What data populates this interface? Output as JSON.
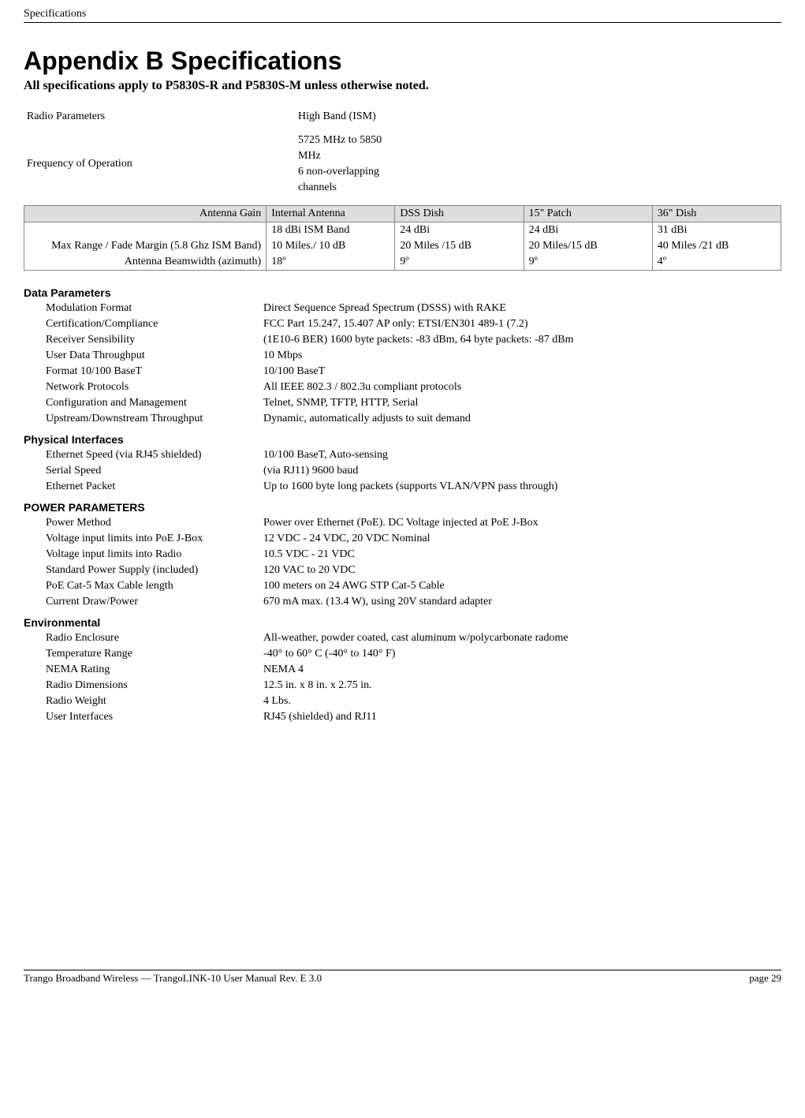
{
  "runningHeader": "Specifications",
  "appendixTitle": "Appendix B  Specifications",
  "subhead": "All specifications apply to P5830S-R and P5830S-M unless otherwise noted.",
  "radioParams": {
    "labelCol": "Radio Parameters",
    "valueCol": "High Band (ISM)",
    "freqLabel": "Frequency of Operation",
    "freqLine1": "5725 MHz to 5850",
    "freqLine2": "MHz",
    "freqLine3": "6 non-overlapping",
    "freqLine4": "channels"
  },
  "antennaTable": {
    "header": {
      "c0": "Antenna Gain",
      "c1": "Internal Antenna",
      "c2": "DSS Dish",
      "c3": "15\" Patch",
      "c4": "36\" Dish"
    },
    "rows": [
      {
        "label": "",
        "c1": "18 dBi ISM Band",
        "c2": "24 dBi",
        "c3": "24 dBi",
        "c4": "31 dBi"
      },
      {
        "label": "Max Range / Fade Margin (5.8 Ghz ISM Band)",
        "c1": "10 Miles./ 10 dB",
        "c2": "20 Miles /15 dB",
        "c3": "20 Miles/15 dB",
        "c4": "40 Miles /21 dB"
      },
      {
        "label": "Antenna Beamwidth (azimuth)",
        "c1": "18º",
        "c2": "9º",
        "c3": "9º",
        "c4": "4º"
      }
    ]
  },
  "sections": [
    {
      "title": "Data Parameters",
      "rows": [
        {
          "k": "Modulation Format",
          "v": "Direct Sequence Spread Spectrum (DSSS) with RAKE"
        },
        {
          "k": "Certification/Compliance",
          "v": "FCC Part 15.247, 15.407 AP only: ETSI/EN301 489-1 (7.2)"
        },
        {
          "k": "Receiver Sensibility",
          "v": " (1E10-6 BER) 1600 byte packets: -83 dBm, 64 byte packets: -87 dBm"
        },
        {
          "k": "User Data Throughput",
          "v": "10 Mbps"
        },
        {
          "k": "Format 10/100 BaseT",
          "v": "10/100 BaseT"
        },
        {
          "k": "Network Protocols",
          "v": "All IEEE 802.3 / 802.3u compliant protocols"
        },
        {
          "k": "Configuration and Management",
          "v": "Telnet, SNMP, TFTP, HTTP, Serial"
        },
        {
          "k": "Upstream/Downstream Throughput",
          "v": "Dynamic, automatically adjusts to suit demand"
        }
      ]
    },
    {
      "title": "Physical Interfaces",
      "rows": [
        {
          "k": "Ethernet Speed (via RJ45 shielded)",
          "v": "10/100 BaseT, Auto-sensing"
        },
        {
          "k": "Serial Speed",
          "v": "(via RJ11) 9600 baud"
        },
        {
          "k": "Ethernet Packet",
          "v": "Up to 1600 byte long packets (supports VLAN/VPN pass through)"
        }
      ]
    },
    {
      "title": "POWER PARAMETERS",
      "rows": [
        {
          "k": "Power Method",
          "v": "Power over Ethernet (PoE). DC Voltage injected at PoE J-Box"
        },
        {
          "k": "Voltage input limits into PoE J-Box",
          "v": "12 VDC - 24 VDC, 20 VDC Nominal"
        },
        {
          "k": "Voltage input limits into Radio",
          "v": "10.5 VDC - 21 VDC"
        },
        {
          "k": "Standard Power Supply (included)",
          "v": "120 VAC to 20 VDC"
        },
        {
          "k": "PoE Cat-5 Max Cable length",
          "v": "100 meters on 24 AWG STP Cat-5 Cable"
        },
        {
          "k": "Current Draw/Power",
          "v": "670 mA max. (13.4 W), using 20V standard adapter"
        }
      ]
    },
    {
      "title": "Environmental",
      "rows": [
        {
          "k": "Radio Enclosure",
          "v": "All-weather, powder coated, cast aluminum w/polycarbonate radome"
        },
        {
          "k": "Temperature Range",
          "v": "-40° to 60° C (-40° to 140° F)"
        },
        {
          "k": "NEMA Rating",
          "v": "NEMA 4"
        },
        {
          "k": "Radio Dimensions",
          "v": "12.5 in. x 8 in. x 2.75 in."
        },
        {
          "k": "Radio Weight",
          "v": "4 Lbs."
        },
        {
          "k": "User Interfaces",
          "v": "RJ45 (shielded) and RJ11"
        }
      ]
    }
  ],
  "footer": {
    "left": "Trango Broadband Wireless — TrangoLINK-10 User Manual Rev. E 3.0",
    "right": "page 29"
  }
}
